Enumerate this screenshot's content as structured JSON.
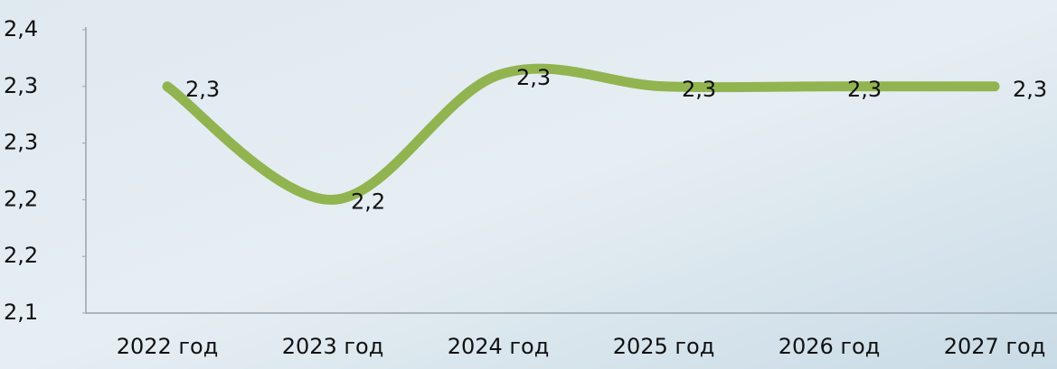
{
  "chart_data": {
    "type": "line",
    "categories": [
      "2022 год",
      "2023 год",
      "2024 год",
      "2025 год",
      "2026 год",
      "2027 год"
    ],
    "values": [
      2.3,
      2.2,
      2.31,
      2.3,
      2.3,
      2.3
    ],
    "value_labels": [
      "2,3",
      "2,2",
      "2,3",
      "2,3",
      "2,3",
      "2,3"
    ],
    "color": "#92b450",
    "ylim": [
      2.1,
      2.35
    ],
    "yticks": [
      {
        "value": 2.1,
        "label": "2,1"
      },
      {
        "value": 2.15,
        "label": "2,2"
      },
      {
        "value": 2.2,
        "label": "2,2"
      },
      {
        "value": 2.25,
        "label": "2,3"
      },
      {
        "value": 2.3,
        "label": "2,3"
      },
      {
        "value": 2.35,
        "label": "2,4"
      }
    ],
    "smooth": true
  }
}
